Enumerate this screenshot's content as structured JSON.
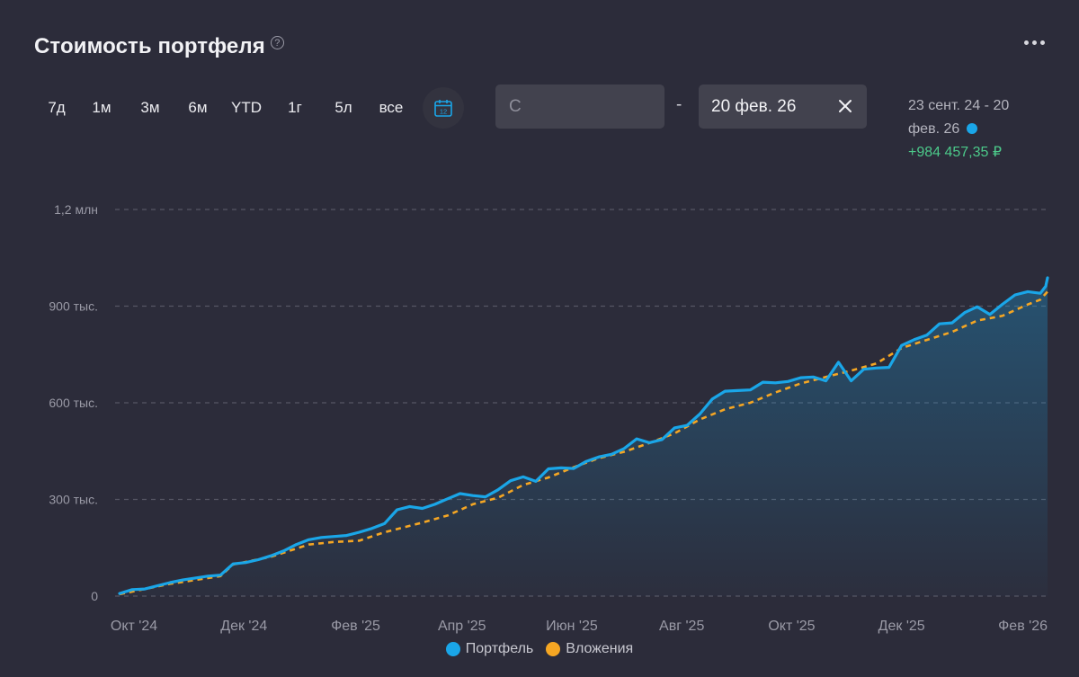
{
  "header": {
    "title": "Стоимость портфеля",
    "help_glyph": "?",
    "menu_icon": "more-horizontal-icon"
  },
  "periods": [
    "7д",
    "1м",
    "3м",
    "6м",
    "YTD",
    "1г",
    "5л",
    "все"
  ],
  "calendar": {
    "icon": "calendar-icon",
    "day": "12",
    "color": "#1aa6e8"
  },
  "date_filter": {
    "from_placeholder": "С",
    "separator": "-",
    "to_value": "20 фев. 26"
  },
  "range_summary": {
    "period_line1": "23 сент. 24 - 20",
    "period_line2": "фев. 26",
    "delta": "+984 457,35 ₽",
    "delta_color": "#4cc98a"
  },
  "colors": {
    "background": "#2c2c3a",
    "portfolio": "#1aa6e8",
    "investments": "#f5a623",
    "grid": "#565664"
  },
  "chart_data": {
    "type": "line",
    "y_ticks": [
      {
        "value": 0,
        "label": "0"
      },
      {
        "value": 300000,
        "label": "300 тыс."
      },
      {
        "value": 600000,
        "label": "600 тыс."
      },
      {
        "value": 900000,
        "label": "900 тыс."
      },
      {
        "value": 1200000,
        "label": "1,2 млн"
      }
    ],
    "ylim": [
      0,
      1200000
    ],
    "x_ticks": [
      {
        "date": "2024-10-01",
        "label": "Окт '24"
      },
      {
        "date": "2024-12-01",
        "label": "Дек '24"
      },
      {
        "date": "2025-02-01",
        "label": "Фев '25"
      },
      {
        "date": "2025-04-01",
        "label": "Апр '25"
      },
      {
        "date": "2025-06-01",
        "label": "Июн '25"
      },
      {
        "date": "2025-08-01",
        "label": "Авг '25"
      },
      {
        "date": "2025-10-01",
        "label": "Окт '25"
      },
      {
        "date": "2025-12-01",
        "label": "Дек '25"
      },
      {
        "date": "2026-02-01",
        "label": "Фев '26"
      }
    ],
    "xlim": [
      "2024-09-23",
      "2026-02-20"
    ],
    "grid": true,
    "legend_position": "bottom-center",
    "series": [
      {
        "name": "Портфель",
        "color": "#1aa6e8",
        "style": "solid-area",
        "points": [
          [
            "2024-09-23",
            8000
          ],
          [
            "2024-09-30",
            20000
          ],
          [
            "2024-10-07",
            22000
          ],
          [
            "2024-10-14",
            32000
          ],
          [
            "2024-10-21",
            42000
          ],
          [
            "2024-10-28",
            50000
          ],
          [
            "2024-11-04",
            56000
          ],
          [
            "2024-11-11",
            62000
          ],
          [
            "2024-11-18",
            65000
          ],
          [
            "2024-11-25",
            100000
          ],
          [
            "2024-12-02",
            104000
          ],
          [
            "2024-12-09",
            113000
          ],
          [
            "2024-12-16",
            125000
          ],
          [
            "2024-12-23",
            140000
          ],
          [
            "2024-12-30",
            160000
          ],
          [
            "2025-01-06",
            175000
          ],
          [
            "2025-01-13",
            182000
          ],
          [
            "2025-01-20",
            185000
          ],
          [
            "2025-01-27",
            188000
          ],
          [
            "2025-02-03",
            198000
          ],
          [
            "2025-02-10",
            210000
          ],
          [
            "2025-02-17",
            225000
          ],
          [
            "2025-02-24",
            268000
          ],
          [
            "2025-03-03",
            278000
          ],
          [
            "2025-03-10",
            272000
          ],
          [
            "2025-03-17",
            285000
          ],
          [
            "2025-03-24",
            302000
          ],
          [
            "2025-03-31",
            318000
          ],
          [
            "2025-04-07",
            312000
          ],
          [
            "2025-04-14",
            308000
          ],
          [
            "2025-04-21",
            330000
          ],
          [
            "2025-04-28",
            358000
          ],
          [
            "2025-05-05",
            370000
          ],
          [
            "2025-05-12",
            356000
          ],
          [
            "2025-05-19",
            395000
          ],
          [
            "2025-05-26",
            398000
          ],
          [
            "2025-06-02",
            396000
          ],
          [
            "2025-06-09",
            418000
          ],
          [
            "2025-06-16",
            432000
          ],
          [
            "2025-06-23",
            440000
          ],
          [
            "2025-06-30",
            458000
          ],
          [
            "2025-07-07",
            488000
          ],
          [
            "2025-07-14",
            476000
          ],
          [
            "2025-07-21",
            486000
          ],
          [
            "2025-07-28",
            522000
          ],
          [
            "2025-08-04",
            530000
          ],
          [
            "2025-08-11",
            565000
          ],
          [
            "2025-08-18",
            612000
          ],
          [
            "2025-08-25",
            636000
          ],
          [
            "2025-09-01",
            638000
          ],
          [
            "2025-09-08",
            640000
          ],
          [
            "2025-09-15",
            664000
          ],
          [
            "2025-09-22",
            662000
          ],
          [
            "2025-09-29",
            666000
          ],
          [
            "2025-10-06",
            678000
          ],
          [
            "2025-10-13",
            680000
          ],
          [
            "2025-10-20",
            668000
          ],
          [
            "2025-10-27",
            726000
          ],
          [
            "2025-11-03",
            668000
          ],
          [
            "2025-11-10",
            704000
          ],
          [
            "2025-11-17",
            708000
          ],
          [
            "2025-11-24",
            710000
          ],
          [
            "2025-12-01",
            778000
          ],
          [
            "2025-12-08",
            796000
          ],
          [
            "2025-12-15",
            810000
          ],
          [
            "2025-12-22",
            845000
          ],
          [
            "2025-12-29",
            848000
          ],
          [
            "2026-01-05",
            880000
          ],
          [
            "2026-01-12",
            898000
          ],
          [
            "2026-01-19",
            874000
          ],
          [
            "2026-01-26",
            906000
          ],
          [
            "2026-02-02",
            935000
          ],
          [
            "2026-02-09",
            945000
          ],
          [
            "2026-02-16",
            940000
          ],
          [
            "2026-02-19",
            962000
          ],
          [
            "2026-02-20",
            988000
          ]
        ]
      },
      {
        "name": "Вложения",
        "color": "#f5a623",
        "style": "dashed",
        "points": [
          [
            "2024-09-23",
            6000
          ],
          [
            "2024-10-21",
            38000
          ],
          [
            "2024-11-18",
            62000
          ],
          [
            "2024-11-25",
            98000
          ],
          [
            "2024-12-16",
            122000
          ],
          [
            "2025-01-06",
            160000
          ],
          [
            "2025-01-20",
            168000
          ],
          [
            "2025-02-03",
            172000
          ],
          [
            "2025-02-17",
            198000
          ],
          [
            "2025-03-10",
            228000
          ],
          [
            "2025-03-24",
            250000
          ],
          [
            "2025-04-07",
            285000
          ],
          [
            "2025-04-21",
            305000
          ],
          [
            "2025-05-05",
            345000
          ],
          [
            "2025-05-19",
            368000
          ],
          [
            "2025-06-02",
            400000
          ],
          [
            "2025-06-16",
            428000
          ],
          [
            "2025-06-30",
            448000
          ],
          [
            "2025-07-14",
            475000
          ],
          [
            "2025-07-28",
            505000
          ],
          [
            "2025-08-11",
            548000
          ],
          [
            "2025-08-25",
            580000
          ],
          [
            "2025-09-08",
            600000
          ],
          [
            "2025-09-22",
            632000
          ],
          [
            "2025-10-06",
            660000
          ],
          [
            "2025-10-20",
            680000
          ],
          [
            "2025-11-03",
            700000
          ],
          [
            "2025-11-17",
            722000
          ],
          [
            "2025-12-01",
            770000
          ],
          [
            "2025-12-15",
            795000
          ],
          [
            "2025-12-29",
            820000
          ],
          [
            "2026-01-12",
            855000
          ],
          [
            "2026-01-26",
            870000
          ],
          [
            "2026-02-09",
            905000
          ],
          [
            "2026-02-16",
            920000
          ],
          [
            "2026-02-20",
            945000
          ]
        ]
      }
    ]
  }
}
